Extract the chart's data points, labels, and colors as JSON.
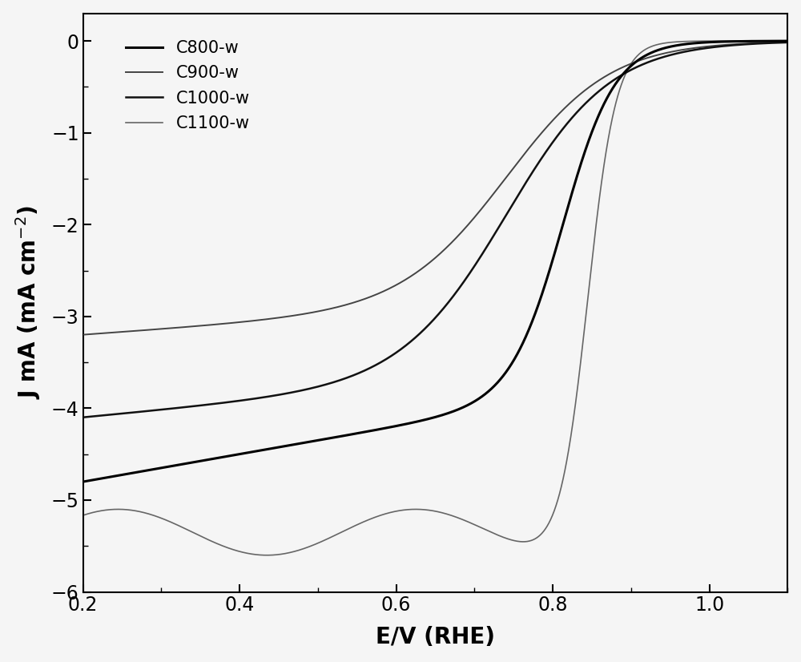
{
  "title": "",
  "xlabel": "E/V (RHE)",
  "ylabel": "J mA (mA cm$^{-2}$)",
  "xlim": [
    0.2,
    1.1
  ],
  "ylim": [
    -6,
    0.3
  ],
  "xticks": [
    0.2,
    0.4,
    0.6,
    0.8,
    1.0
  ],
  "yticks": [
    0,
    -1,
    -2,
    -3,
    -4,
    -5,
    -6
  ],
  "background_color": "#f5f5f5",
  "legend_fontsize": 15,
  "axis_fontsize": 20,
  "tick_fontsize": 17
}
